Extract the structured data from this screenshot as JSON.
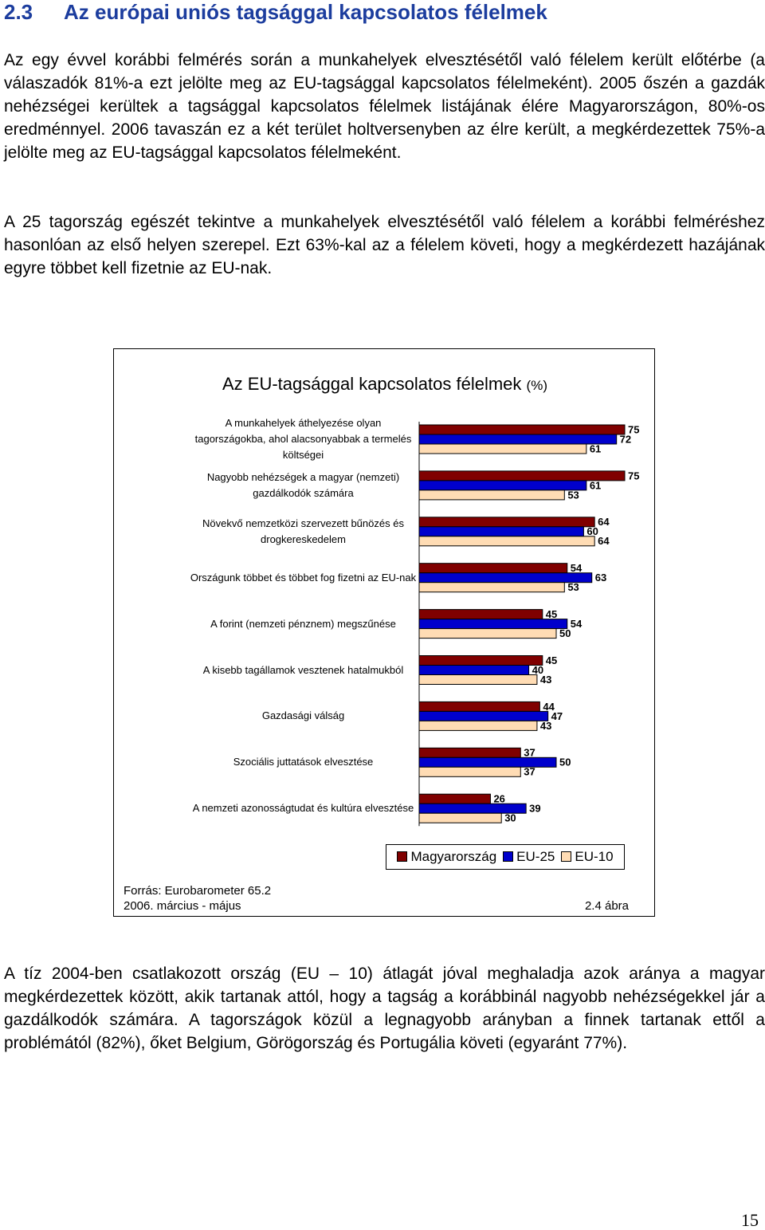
{
  "heading": {
    "number": "2.3",
    "title": "Az európai uniós tagsággal kapcsolatos félelmek"
  },
  "paragraphs": [
    "Az egy évvel korábbi felmérés során a munkahelyek elvesztésétől való félelem került előtérbe (a válaszadók 81%-a ezt jelölte meg az EU-tagsággal kapcsolatos félelmeként). 2005 őszén a gazdák nehézségei kerültek a tagsággal kapcsolatos félelmek listájának élére Magyarországon, 80%-os eredménnyel. 2006 tavaszán ez a két terület holtversenyben az élre került, a megkérdezettek 75%-a jelölte meg az EU-tagsággal kapcsolatos félelmeként.",
    "A 25 tagország egészét tekintve a munkahelyek elvesztésétől való félelem a korábbi felméréshez hasonlóan az első helyen szerepel. Ezt 63%-kal az a félelem követi, hogy a megkérdezett hazájának egyre többet kell fizetnie az EU-nak.",
    "A tíz 2004-ben csatlakozott ország (EU – 10) átlagát jóval meghaladja azok aránya a magyar megkérdezettek között, akik tartanak attól, hogy a tagság a korábbinál nagyobb nehézségekkel jár a gazdálkodók számára. A tagországok közül a legnagyobb arányban a finnek tartanak ettől a problémától (82%), őket Belgium, Görögország és Portugália követi (egyaránt 77%)."
  ],
  "chart_data": {
    "type": "hbar",
    "title": "Az EU-tagsággal kapcsolatos félelmek",
    "subtitle": "(%)",
    "categories": [
      "A munkahelyek áthelyezése olyan tagországokba, ahol alacsonyabbak a termelés költségei",
      "Nagyobb nehézségek a magyar (nemzeti) gazdálkodók számára",
      "Növekvő nemzetközi szervezett bűnözés és drogkereskedelem",
      "Országunk többet és többet fog fizetni az EU-nak",
      "A forint (nemzeti pénznem) megszűnése",
      "A kisebb tagállamok vesztenek hatalmukból",
      "Gazdasági válság",
      "Szociális juttatások elvesztése",
      "A nemzeti azonosságtudat és kultúra elvesztése"
    ],
    "series": [
      {
        "name": "Magyarország",
        "color": "#800000",
        "values": [
          75,
          75,
          64,
          54,
          45,
          45,
          44,
          37,
          26
        ]
      },
      {
        "name": "EU-25",
        "color": "#0000cc",
        "values": [
          72,
          61,
          60,
          63,
          54,
          40,
          47,
          50,
          39
        ]
      },
      {
        "name": "EU-10",
        "color": "#ffdcb4",
        "values": [
          61,
          53,
          64,
          53,
          50,
          43,
          43,
          37,
          30
        ]
      }
    ],
    "legend": "bottom",
    "source": "Forrás: Eurobarometer 65.2",
    "period": "2006. március - május",
    "figure_label": "2.4 ábra"
  },
  "page_number": "15"
}
